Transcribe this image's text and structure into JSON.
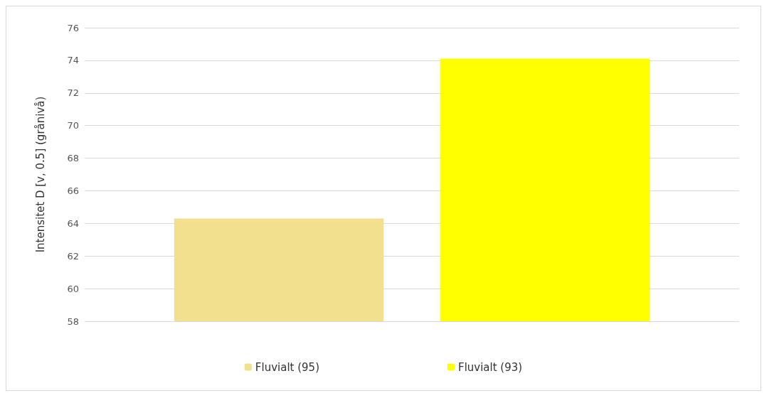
{
  "chart_data": {
    "type": "bar",
    "ylabel": "Intensitet D [v, 0.5] (grånivå)",
    "categories": [
      null
    ],
    "series": [
      {
        "name": "Fluvialt (95)",
        "color": "#f2e08e",
        "values": [
          64.3
        ]
      },
      {
        "name": "Fluvialt (93)",
        "color": "#ffff00",
        "values": [
          74.1
        ]
      }
    ],
    "ylim": [
      58,
      76
    ],
    "yticks": [
      58,
      60,
      62,
      64,
      66,
      68,
      70,
      72,
      74,
      76
    ],
    "grid": "y",
    "legend": "bottom"
  }
}
